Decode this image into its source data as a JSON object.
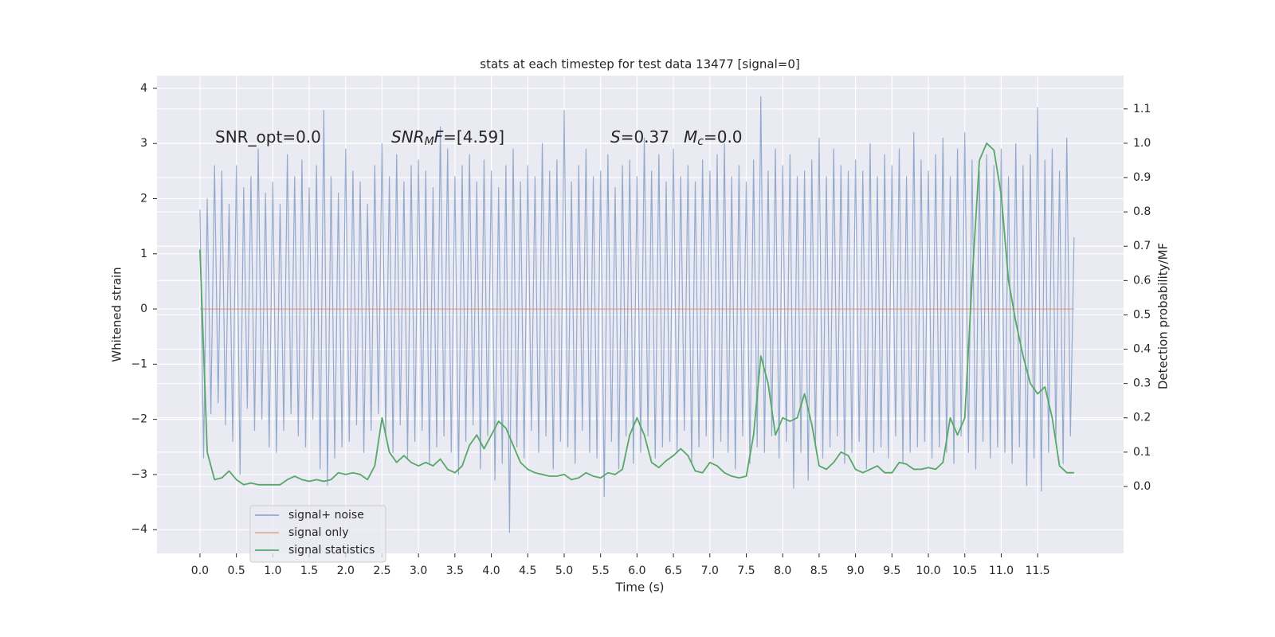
{
  "chart_data": {
    "type": "line",
    "title": "stats at each timestep for test data 13477 [signal=0]",
    "xlabel": "Time (s)",
    "ylabel": "Whitened strain",
    "y2label": "Detection probability/MF",
    "xlim": [
      -0.59,
      12.68
    ],
    "ylim": [
      -4.43,
      4.23
    ],
    "y2lim": [
      -0.195,
      1.197
    ],
    "grid": true,
    "xticks": [
      {
        "value": 0,
        "label": "0.0"
      },
      0.5,
      {
        "value": 1,
        "label": "1.0"
      },
      1.5,
      {
        "value": 2,
        "label": "2.0"
      },
      2.5,
      {
        "value": 3,
        "label": "3.0"
      },
      3.5,
      {
        "value": 4,
        "label": "4.0"
      },
      4.5,
      {
        "value": 5,
        "label": "5.0"
      },
      5.5,
      {
        "value": 6,
        "label": "6.0"
      },
      6.5,
      {
        "value": 7,
        "label": "7.0"
      },
      7.5,
      {
        "value": 8,
        "label": "8.0"
      },
      8.5,
      {
        "value": 9,
        "label": "9.0"
      },
      9.5,
      {
        "value": 10,
        "label": "10.0"
      },
      10.5,
      {
        "value": 11,
        "label": "11.0"
      },
      11.5
    ],
    "yticks": [
      {
        "value": -4,
        "label": "−4"
      },
      {
        "value": -3,
        "label": "−3"
      },
      {
        "value": -2,
        "label": "−2"
      },
      {
        "value": -1,
        "label": "−1"
      },
      0,
      1,
      2,
      3,
      4
    ],
    "y2ticks": [
      {
        "value": 0,
        "label": "0.0"
      },
      0.1,
      0.2,
      0.3,
      0.4,
      0.5,
      0.6,
      0.7,
      0.8,
      0.9,
      {
        "value": 1,
        "label": "1.0"
      },
      1.1
    ],
    "annotations": [
      {
        "parts": [
          {
            "text": "SNR_opt=0.0"
          }
        ]
      },
      {
        "parts": [
          {
            "text": "SNR",
            "style": "italic"
          },
          {
            "text": "M",
            "style": "italic-sub"
          },
          {
            "text": "F",
            "style": "italic"
          },
          {
            "text": "=[4.59]"
          }
        ]
      },
      {
        "parts": [
          {
            "text": "S",
            "style": "italic"
          },
          {
            "text": "=0.37"
          }
        ]
      },
      {
        "parts": [
          {
            "text": "M",
            "style": "italic"
          },
          {
            "text": "c",
            "style": "italic-sub"
          },
          {
            "text": "=0.0"
          }
        ]
      }
    ],
    "series": [
      {
        "name": "signal+ noise",
        "color": "#4c72b0",
        "x": [
          0,
          0.05,
          0.1,
          0.15,
          0.2,
          0.25,
          0.3,
          0.35,
          0.4,
          0.45,
          0.5,
          0.55,
          0.6,
          0.65,
          0.7,
          0.75,
          0.8,
          0.85,
          0.9,
          0.95,
          1,
          1.05,
          1.1,
          1.15,
          1.2,
          1.25,
          1.3,
          1.35,
          1.4,
          1.45,
          1.5,
          1.55,
          1.6,
          1.65,
          1.7,
          1.75,
          1.8,
          1.85,
          1.9,
          1.95,
          2,
          2.05,
          2.1,
          2.15,
          2.2,
          2.25,
          2.3,
          2.35,
          2.4,
          2.45,
          2.5,
          2.55,
          2.6,
          2.65,
          2.7,
          2.75,
          2.8,
          2.85,
          2.9,
          2.95,
          3,
          3.05,
          3.1,
          3.15,
          3.2,
          3.25,
          3.3,
          3.35,
          3.4,
          3.45,
          3.5,
          3.55,
          3.6,
          3.65,
          3.7,
          3.75,
          3.8,
          3.85,
          3.9,
          3.95,
          4,
          4.05,
          4.1,
          4.15,
          4.2,
          4.25,
          4.3,
          4.35,
          4.4,
          4.45,
          4.5,
          4.55,
          4.6,
          4.65,
          4.7,
          4.75,
          4.8,
          4.85,
          4.9,
          4.95,
          5,
          5.05,
          5.1,
          5.15,
          5.2,
          5.25,
          5.3,
          5.35,
          5.4,
          5.45,
          5.5,
          5.55,
          5.6,
          5.65,
          5.7,
          5.75,
          5.8,
          5.85,
          5.9,
          5.95,
          6,
          6.05,
          6.1,
          6.15,
          6.2,
          6.25,
          6.3,
          6.35,
          6.4,
          6.45,
          6.5,
          6.55,
          6.6,
          6.65,
          6.7,
          6.75,
          6.8,
          6.85,
          6.9,
          6.95,
          7,
          7.05,
          7.1,
          7.15,
          7.2,
          7.25,
          7.3,
          7.35,
          7.4,
          7.45,
          7.5,
          7.55,
          7.6,
          7.65,
          7.7,
          7.75,
          7.8,
          7.85,
          7.9,
          7.95,
          8,
          8.05,
          8.1,
          8.15,
          8.2,
          8.25,
          8.3,
          8.35,
          8.4,
          8.45,
          8.5,
          8.55,
          8.6,
          8.65,
          8.7,
          8.75,
          8.8,
          8.85,
          8.9,
          8.95,
          9,
          9.05,
          9.1,
          9.15,
          9.2,
          9.25,
          9.3,
          9.35,
          9.4,
          9.45,
          9.5,
          9.55,
          9.6,
          9.65,
          9.7,
          9.75,
          9.8,
          9.85,
          9.9,
          9.95,
          10,
          10.05,
          10.1,
          10.15,
          10.2,
          10.25,
          10.3,
          10.35,
          10.4,
          10.45,
          10.5,
          10.55,
          10.6,
          10.65,
          10.7,
          10.75,
          10.8,
          10.85,
          10.9,
          10.95,
          11,
          11.05,
          11.1,
          11.15,
          11.2,
          11.25,
          11.3,
          11.35,
          11.4,
          11.45,
          11.5,
          11.55,
          11.6,
          11.65,
          11.7,
          11.75,
          11.8,
          11.85,
          11.9,
          11.95,
          12
        ],
        "values": [
          1.8,
          -2.7,
          2.0,
          -1.9,
          2.6,
          -1.7,
          2.5,
          -2.1,
          1.9,
          -2.4,
          2.6,
          -3.0,
          2.2,
          -1.8,
          2.4,
          -2.2,
          2.9,
          -2.0,
          2.1,
          -2.5,
          2.3,
          -2.6,
          1.9,
          -2.2,
          2.8,
          -1.9,
          2.4,
          -2.3,
          2.7,
          -2.5,
          2.2,
          -2.0,
          2.6,
          -2.9,
          3.6,
          -3.2,
          2.4,
          -2.7,
          2.1,
          -2.5,
          2.9,
          -2.4,
          2.5,
          -2.1,
          2.3,
          -2.6,
          1.9,
          -2.2,
          2.6,
          -1.9,
          3.0,
          -2.3,
          2.4,
          -2.6,
          2.8,
          -2.1,
          2.3,
          -2.7,
          2.6,
          -2.4,
          2.7,
          -2.2,
          2.5,
          -2.8,
          2.2,
          -2.5,
          3.3,
          -2.3,
          2.9,
          -2.6,
          2.4,
          -3.0,
          2.6,
          -2.4,
          2.8,
          -2.1,
          2.3,
          -2.9,
          2.7,
          -2.3,
          2.5,
          -3.1,
          2.2,
          -2.8,
          2.6,
          -4.05,
          2.9,
          -2.5,
          2.3,
          -2.7,
          2.6,
          -2.2,
          2.4,
          -2.6,
          3.0,
          -2.3,
          2.5,
          -2.9,
          2.7,
          -2.4,
          3.6,
          -2.5,
          2.3,
          -2.8,
          2.6,
          -2.2,
          2.9,
          -2.6,
          2.4,
          -2.7,
          2.5,
          -3.4,
          2.8,
          -2.4,
          2.2,
          -2.9,
          2.6,
          -2.3,
          2.7,
          -2.8,
          2.4,
          -2.6,
          3.1,
          -2.3,
          2.5,
          -2.7,
          2.8,
          -2.5,
          2.3,
          -2.4,
          2.9,
          -2.6,
          2.4,
          -2.2,
          2.6,
          -2.8,
          2.3,
          -2.5,
          2.7,
          -2.3,
          2.5,
          -2.7,
          2.8,
          -2.4,
          3.0,
          -2.6,
          2.4,
          -2.9,
          2.6,
          -2.3,
          2.3,
          -2.8,
          2.7,
          -2.5,
          3.85,
          -2.6,
          2.5,
          -2.3,
          2.9,
          -2.7,
          2.6,
          -2.4,
          2.8,
          -3.25,
          2.4,
          -2.6,
          2.5,
          -3.1,
          2.7,
          -2.5,
          3.1,
          -2.7,
          2.4,
          -2.5,
          2.9,
          -2.3,
          2.6,
          -2.8,
          2.5,
          -2.6,
          2.7,
          -2.4,
          2.5,
          -2.9,
          3.0,
          -2.6,
          2.4,
          -2.5,
          2.8,
          -2.7,
          2.6,
          -2.3,
          2.9,
          -2.8,
          2.4,
          -2.6,
          3.2,
          -2.5,
          2.7,
          -2.4,
          2.5,
          -2.7,
          2.8,
          -2.5,
          3.1,
          -2.6,
          2.4,
          -2.8,
          2.9,
          -2.3,
          3.2,
          -2.6,
          2.7,
          -2.9,
          2.5,
          -2.4,
          2.8,
          -2.7,
          2.6,
          -2.5,
          2.9,
          -2.6,
          2.4,
          -2.8,
          3.0,
          -2.5,
          2.6,
          -3.2,
          2.8,
          -2.7,
          3.65,
          -3.3,
          2.7,
          -2.6,
          2.9,
          -2.4,
          2.5,
          -2.8,
          3.1,
          -2.3,
          1.3
        ]
      },
      {
        "name": "signal only",
        "color": "#dd8452",
        "x": [
          0,
          12
        ],
        "values": [
          0,
          0
        ]
      },
      {
        "name": "signal statistics",
        "color": "#55a868",
        "axis": "y2",
        "x": [
          0,
          0.1,
          0.2,
          0.3,
          0.4,
          0.5,
          0.6,
          0.7,
          0.8,
          0.9,
          1,
          1.1,
          1.2,
          1.3,
          1.4,
          1.5,
          1.6,
          1.7,
          1.8,
          1.9,
          2,
          2.1,
          2.2,
          2.3,
          2.4,
          2.5,
          2.6,
          2.7,
          2.8,
          2.9,
          3,
          3.1,
          3.2,
          3.3,
          3.4,
          3.5,
          3.6,
          3.7,
          3.8,
          3.9,
          4,
          4.1,
          4.2,
          4.3,
          4.4,
          4.5,
          4.6,
          4.7,
          4.8,
          4.9,
          5,
          5.1,
          5.2,
          5.3,
          5.4,
          5.5,
          5.6,
          5.7,
          5.8,
          5.9,
          6,
          6.1,
          6.2,
          6.3,
          6.4,
          6.5,
          6.6,
          6.7,
          6.8,
          6.9,
          7,
          7.1,
          7.2,
          7.3,
          7.4,
          7.5,
          7.6,
          7.7,
          7.8,
          7.9,
          8,
          8.1,
          8.2,
          8.3,
          8.4,
          8.5,
          8.6,
          8.7,
          8.8,
          8.9,
          9,
          9.1,
          9.2,
          9.3,
          9.4,
          9.5,
          9.6,
          9.7,
          9.8,
          9.9,
          10,
          10.1,
          10.2,
          10.3,
          10.4,
          10.5,
          10.6,
          10.7,
          10.8,
          10.9,
          11,
          11.1,
          11.2,
          11.3,
          11.4,
          11.5,
          11.6,
          11.7,
          11.8,
          11.9,
          12
        ],
        "values": [
          0.69,
          0.1,
          0.02,
          0.025,
          0.045,
          0.02,
          0.005,
          0.01,
          0.005,
          0.005,
          0.005,
          0.005,
          0.02,
          0.03,
          0.02,
          0.015,
          0.02,
          0.015,
          0.02,
          0.04,
          0.035,
          0.04,
          0.035,
          0.02,
          0.06,
          0.2,
          0.1,
          0.07,
          0.09,
          0.07,
          0.06,
          0.07,
          0.06,
          0.08,
          0.05,
          0.04,
          0.06,
          0.12,
          0.15,
          0.11,
          0.15,
          0.19,
          0.17,
          0.12,
          0.07,
          0.05,
          0.04,
          0.035,
          0.03,
          0.03,
          0.035,
          0.02,
          0.025,
          0.04,
          0.03,
          0.025,
          0.04,
          0.035,
          0.05,
          0.15,
          0.2,
          0.15,
          0.07,
          0.055,
          0.075,
          0.09,
          0.11,
          0.09,
          0.045,
          0.04,
          0.07,
          0.06,
          0.04,
          0.03,
          0.025,
          0.03,
          0.15,
          0.38,
          0.3,
          0.15,
          0.2,
          0.19,
          0.2,
          0.27,
          0.18,
          0.06,
          0.05,
          0.07,
          0.1,
          0.09,
          0.05,
          0.04,
          0.05,
          0.06,
          0.04,
          0.04,
          0.07,
          0.065,
          0.05,
          0.05,
          0.055,
          0.05,
          0.07,
          0.2,
          0.15,
          0.2,
          0.6,
          0.95,
          1.0,
          0.98,
          0.85,
          0.6,
          0.48,
          0.38,
          0.3,
          0.27,
          0.29,
          0.2,
          0.06,
          0.04,
          0.04
        ]
      }
    ]
  }
}
